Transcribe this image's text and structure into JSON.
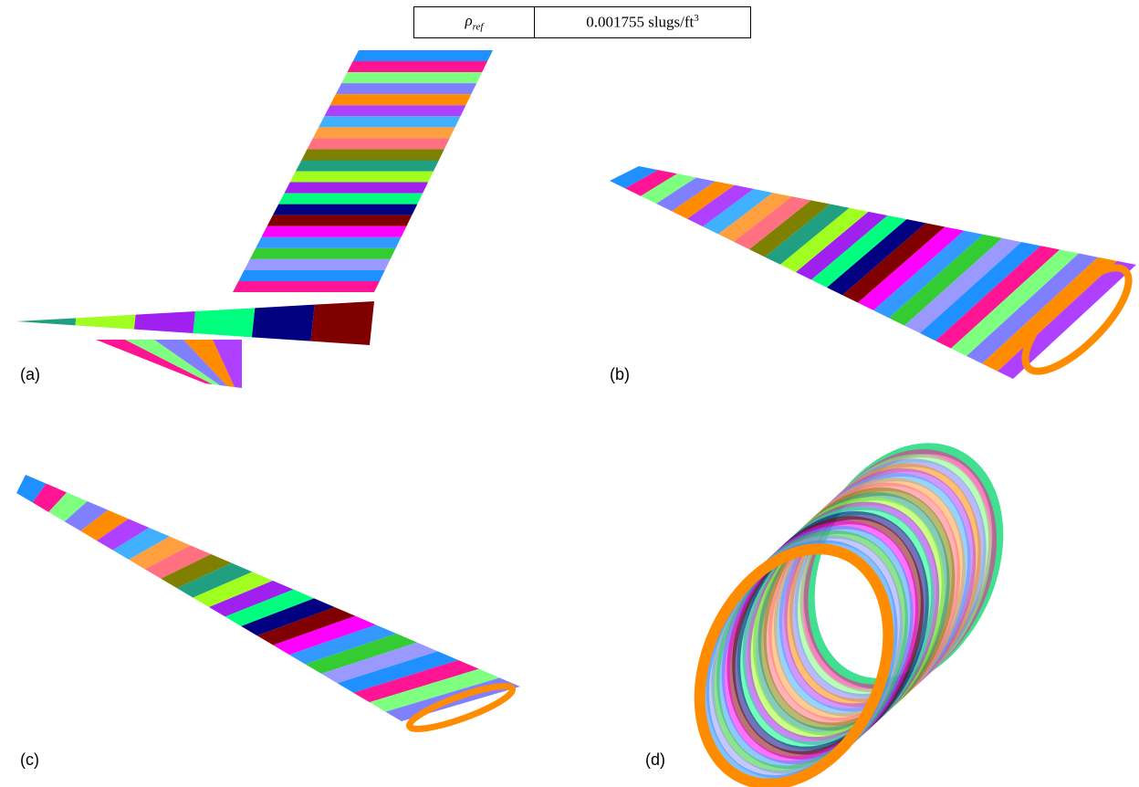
{
  "table": {
    "rows": [
      [
        {
          "symbol": "ρ",
          "subscript": "ref"
        },
        {
          "text": "0.001755 slugs/ft",
          "superscript": "3"
        }
      ]
    ]
  },
  "panels": [
    {
      "label": "(a)"
    },
    {
      "label": "(b)"
    },
    {
      "label": "(c)"
    },
    {
      "label": "(d)"
    }
  ]
}
